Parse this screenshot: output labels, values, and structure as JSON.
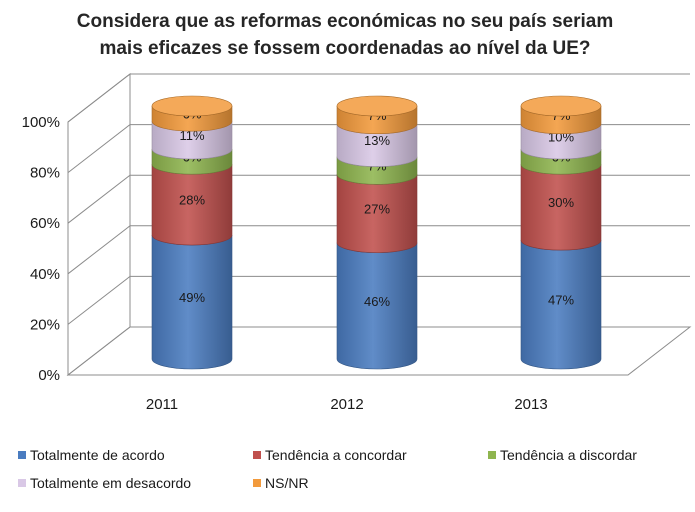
{
  "chart_data": {
    "type": "bar",
    "stacked": true,
    "title_lines": [
      "Considera que as reformas económicas no seu país seriam",
      "mais eficazes se fossem coordenadas ao nível da UE?"
    ],
    "categories": [
      "2011",
      "2012",
      "2013"
    ],
    "y_ticks": [
      "0%",
      "20%",
      "40%",
      "60%",
      "80%",
      "100%"
    ],
    "ylim": [
      0,
      100
    ],
    "series": [
      {
        "name": "Totalmente de acordo",
        "values": [
          49,
          46,
          47
        ],
        "labels": [
          "49%",
          "46%",
          "47%"
        ],
        "color": "#4a7cc0"
      },
      {
        "name": "Tendência a concordar",
        "values": [
          28,
          27,
          30
        ],
        "labels": [
          "28%",
          "27%",
          "30%"
        ],
        "color": "#c0504d"
      },
      {
        "name": "Tendência a discordar",
        "values": [
          6,
          7,
          6
        ],
        "labels": [
          "6%",
          "7%",
          "6%"
        ],
        "color": "#8fb54f"
      },
      {
        "name": "Totalmente em desacordo",
        "values": [
          11,
          13,
          10
        ],
        "labels": [
          "11%",
          "13%",
          "10%"
        ],
        "color": "#d9c8e6"
      },
      {
        "name": "NS/NR",
        "values": [
          6,
          7,
          7
        ],
        "labels": [
          "6%",
          "7%",
          "7%"
        ],
        "color": "#f29a3c"
      }
    ],
    "legend_position": "bottom"
  }
}
